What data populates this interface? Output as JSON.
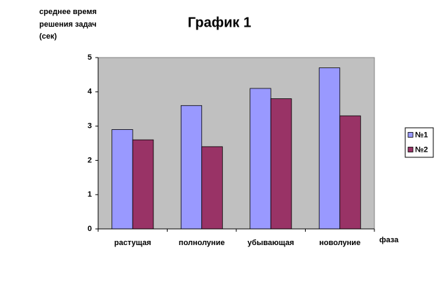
{
  "chart_data": {
    "type": "bar",
    "title": "График 1",
    "ylabel": [
      "среднее время",
      "решения задач",
      "(сек)"
    ],
    "xlabel": "фаза",
    "categories": [
      "растущая",
      "полнолуние",
      "убывающая",
      "новолуние"
    ],
    "series": [
      {
        "name": "№1",
        "color": "#9999ff",
        "values": [
          2.9,
          3.6,
          4.1,
          4.7
        ]
      },
      {
        "name": "№2",
        "color": "#993366",
        "values": [
          2.6,
          2.4,
          3.8,
          3.3
        ]
      }
    ],
    "ylim": [
      0,
      5
    ],
    "yticks": [
      0,
      1,
      2,
      3,
      4,
      5
    ],
    "plot_background": "#c0c0c0",
    "legend": "right"
  }
}
